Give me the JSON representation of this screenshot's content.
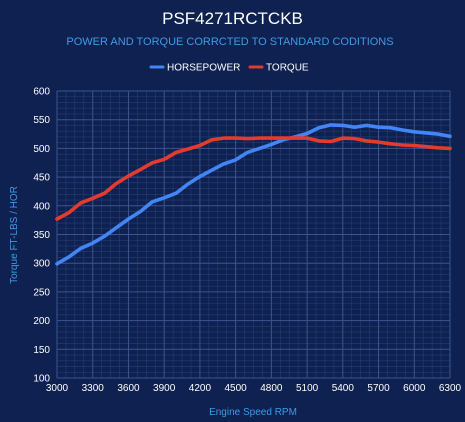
{
  "chart_data": {
    "type": "line",
    "title": "PSF4271RCTCKB",
    "subtitle": "POWER AND TORQUE CORRCTED TO STANDARD CODITIONS",
    "xlabel": "Engine Speed RPM",
    "ylabel": "Torque FT-LBS / HOR",
    "xlim": [
      3000,
      6300
    ],
    "ylim": [
      100,
      600
    ],
    "xticks": [
      3000,
      3300,
      3600,
      3900,
      4200,
      4500,
      4800,
      5100,
      5400,
      5700,
      6000,
      6300
    ],
    "yticks": [
      100,
      150,
      200,
      250,
      300,
      350,
      400,
      450,
      500,
      550,
      600
    ],
    "grid": true,
    "legend_position": "top-center",
    "series": [
      {
        "name": "HORSEPOWER",
        "color": "#4285f4",
        "x": [
          3000,
          3100,
          3200,
          3300,
          3400,
          3500,
          3600,
          3700,
          3800,
          3900,
          4000,
          4100,
          4200,
          4300,
          4400,
          4500,
          4600,
          4700,
          4800,
          4900,
          5000,
          5100,
          5200,
          5300,
          5400,
          5500,
          5600,
          5700,
          5800,
          5900,
          6000,
          6100,
          6200,
          6300
        ],
        "y": [
          299,
          311,
          326,
          335,
          347,
          362,
          377,
          390,
          407,
          414,
          422,
          438,
          451,
          462,
          473,
          480,
          493,
          500,
          507,
          515,
          520,
          526,
          536,
          541,
          540,
          537,
          540,
          537,
          536,
          532,
          529,
          527,
          525,
          521
        ]
      },
      {
        "name": "TORQUE",
        "color": "#e33b2e",
        "x": [
          3000,
          3100,
          3200,
          3300,
          3400,
          3500,
          3600,
          3700,
          3800,
          3900,
          4000,
          4100,
          4200,
          4300,
          4400,
          4500,
          4600,
          4700,
          4800,
          4900,
          5000,
          5100,
          5200,
          5300,
          5400,
          5500,
          5600,
          5700,
          5800,
          5900,
          6000,
          6100,
          6200,
          6300
        ],
        "y": [
          377,
          388,
          405,
          413,
          422,
          439,
          452,
          463,
          475,
          481,
          493,
          499,
          505,
          515,
          518,
          518,
          517,
          518,
          518,
          518,
          518,
          518,
          513,
          512,
          518,
          517,
          513,
          511,
          508,
          506,
          505,
          503,
          501,
          500
        ]
      }
    ]
  }
}
